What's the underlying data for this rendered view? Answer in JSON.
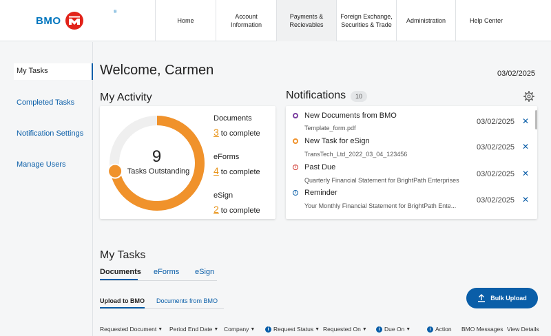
{
  "brand": {
    "name": "BMO",
    "tm": "®",
    "color": "#0075be",
    "mark_color": "#e2231a"
  },
  "nav": [
    {
      "label": "Home",
      "active": false
    },
    {
      "label": "Account\nInformation",
      "active": false
    },
    {
      "label": "Payments &\nRecievables",
      "active": true
    },
    {
      "label": "Foreign Exchange,\nSecurities & Trade",
      "active": false
    },
    {
      "label": "Administration",
      "active": false
    },
    {
      "label": "Help Center",
      "active": false
    }
  ],
  "sidebar": {
    "items": [
      {
        "label": "My Tasks",
        "active": true
      },
      {
        "label": "Completed Tasks",
        "active": false
      },
      {
        "label": "Notification Settings",
        "active": false
      },
      {
        "label": "Manage Users",
        "active": false
      }
    ]
  },
  "header": {
    "welcome": "Welcome, Carmen",
    "date": "03/02/2025"
  },
  "activity": {
    "title": "My Activity",
    "total": "9",
    "total_label": "Tasks Outstanding",
    "progress_fraction": 0.72,
    "accent": "#f0922b",
    "items": [
      {
        "label": "Documents",
        "count": "3",
        "suffix": "to complete"
      },
      {
        "label": "eForms",
        "count": "4",
        "suffix": "to complete"
      },
      {
        "label": "eSign",
        "count": "2",
        "suffix": "to complete"
      }
    ]
  },
  "notifications": {
    "title": "Notifications",
    "count": "10",
    "items": [
      {
        "title": "New Documents from BMO",
        "sub": "Template_form.pdf",
        "date": "03/02/2025",
        "dot": "#7b3fa0",
        "icon": "dot-icon"
      },
      {
        "title": "New Task for eSign",
        "sub": "TransTech_Ltd_2022_03_04_123456",
        "date": "03/02/2025",
        "dot": "#f0922b",
        "icon": "dot-icon"
      },
      {
        "title": "Past Due",
        "sub": "Quarterly Financial Statement for BrightPath Enterprises",
        "date": "03/02/2025",
        "dot": "#d0342c",
        "icon": "alert-icon"
      },
      {
        "title": "Reminder",
        "sub": "Your Monthly Financial Statement for BrightPath Ente...",
        "date": "03/02/2025",
        "dot": "#0a5ea8",
        "icon": "info-icon"
      }
    ]
  },
  "tasks": {
    "title": "My Tasks",
    "tabs": [
      "Documents",
      "eForms",
      "eSign"
    ],
    "subtabs": [
      "Upload to BMO",
      "Documents from BMO"
    ],
    "bulk_upload": "Bulk Upload",
    "columns": [
      {
        "label": "Requested Document",
        "sort": true,
        "info": false
      },
      {
        "label": "Period End Date",
        "sort": true,
        "info": false
      },
      {
        "label": "Company",
        "sort": true,
        "info": false
      },
      {
        "label": "Request Status",
        "sort": true,
        "info": true
      },
      {
        "label": "Requested On",
        "sort": true,
        "info": false
      },
      {
        "label": "Due On",
        "sort": true,
        "info": true
      },
      {
        "label": "Action",
        "sort": false,
        "info": true
      },
      {
        "label": "BMO Messages",
        "sort": false,
        "info": false
      },
      {
        "label": "View Details",
        "sort": false,
        "info": false
      }
    ]
  }
}
